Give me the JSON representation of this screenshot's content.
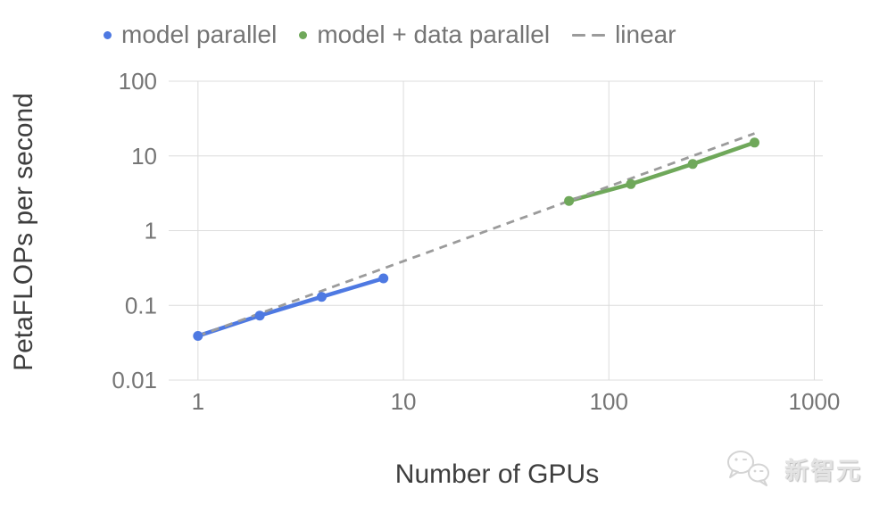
{
  "chart_data": {
    "type": "line",
    "title": "",
    "xlabel": "Number of GPUs",
    "ylabel": "PetaFLOPs per second",
    "x_scale": "log",
    "y_scale": "log",
    "xlim": [
      0.72,
      1100
    ],
    "ylim": [
      0.01,
      100
    ],
    "grid": true,
    "legend_position": "top",
    "x_ticks": [
      "1",
      "10",
      "100",
      "1000"
    ],
    "y_ticks": [
      "100",
      "10",
      "1",
      "0.1",
      "0.01"
    ],
    "series": [
      {
        "name": "model parallel",
        "line": "solid",
        "marker": "circle",
        "color": "#4e79e2",
        "x": [
          1,
          2,
          4,
          8
        ],
        "y": [
          0.039,
          0.073,
          0.13,
          0.23
        ]
      },
      {
        "name": "model + data parallel",
        "line": "solid",
        "marker": "circle",
        "color": "#6fa85a",
        "x": [
          64,
          128,
          256,
          512
        ],
        "y": [
          2.5,
          4.2,
          7.8,
          15.1
        ]
      },
      {
        "name": "linear",
        "line": "dashed",
        "marker": "none",
        "color": "#9b9b9b",
        "x": [
          1,
          512
        ],
        "y": [
          0.039,
          19.97
        ]
      }
    ]
  },
  "colors": {
    "background": "#ffffff",
    "grid": "#dcdcdc",
    "tick_text": "#757575",
    "axis_title_text": "#3e3e3e",
    "legend_text": "#757575",
    "watermark": "#e3e3e3"
  },
  "watermark": {
    "text": "新智元"
  }
}
